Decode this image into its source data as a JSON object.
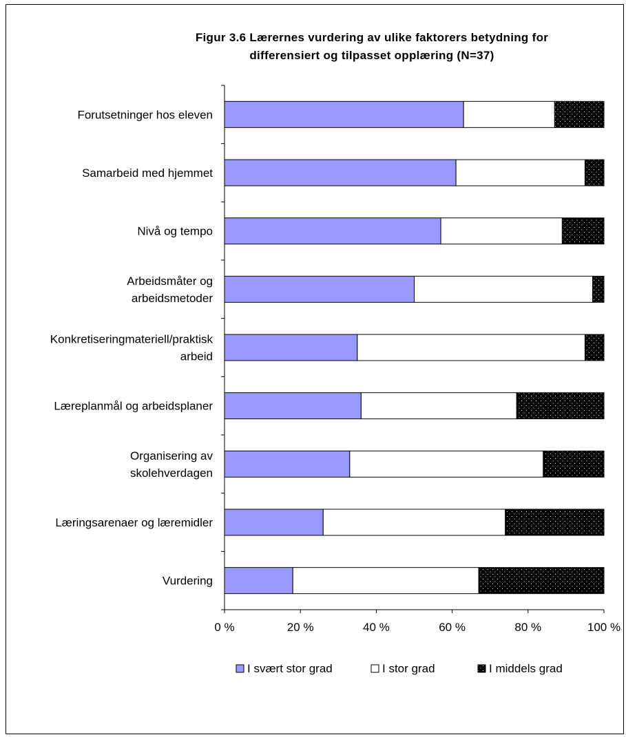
{
  "chart_data": {
    "type": "bar",
    "orientation": "horizontal",
    "stacked": "percent",
    "title": [
      "Figur 3.6  Lærernes vurdering av ulike faktorers betydning for",
      "differensiert og tilpasset opplæring (N=37)"
    ],
    "categories": [
      [
        "Forutsetninger hos eleven"
      ],
      [
        "Samarbeid med hjemmet"
      ],
      [
        "Nivå og tempo"
      ],
      [
        "Arbeidsmåter og",
        "arbeidsmetoder"
      ],
      [
        "Konkretiseringmateriell/praktisk",
        "arbeid"
      ],
      [
        "Læreplanmål og arbeidsplaner"
      ],
      [
        "Organisering av",
        "skolehverdagen"
      ],
      [
        "Læringsarenaer og læremidler"
      ],
      [
        "Vurdering"
      ]
    ],
    "series": [
      {
        "name": "I svært stor grad",
        "color": "#9999ff",
        "values": [
          63,
          61,
          57,
          50,
          35,
          36,
          33,
          26,
          18
        ]
      },
      {
        "name": "I stor grad",
        "color": "#ffffff",
        "values": [
          24,
          34,
          32,
          47,
          60,
          41,
          51,
          48,
          49
        ]
      },
      {
        "name": "I middels grad",
        "color": "#000000",
        "pattern": "dotted",
        "values": [
          13,
          5,
          11,
          3,
          5,
          23,
          16,
          26,
          33
        ]
      }
    ],
    "xticks": [
      "0 %",
      "20 %",
      "40 %",
      "60 %",
      "80 %",
      "100 %"
    ],
    "xlim": [
      0,
      100
    ],
    "grid": false,
    "legend": "bottom"
  }
}
